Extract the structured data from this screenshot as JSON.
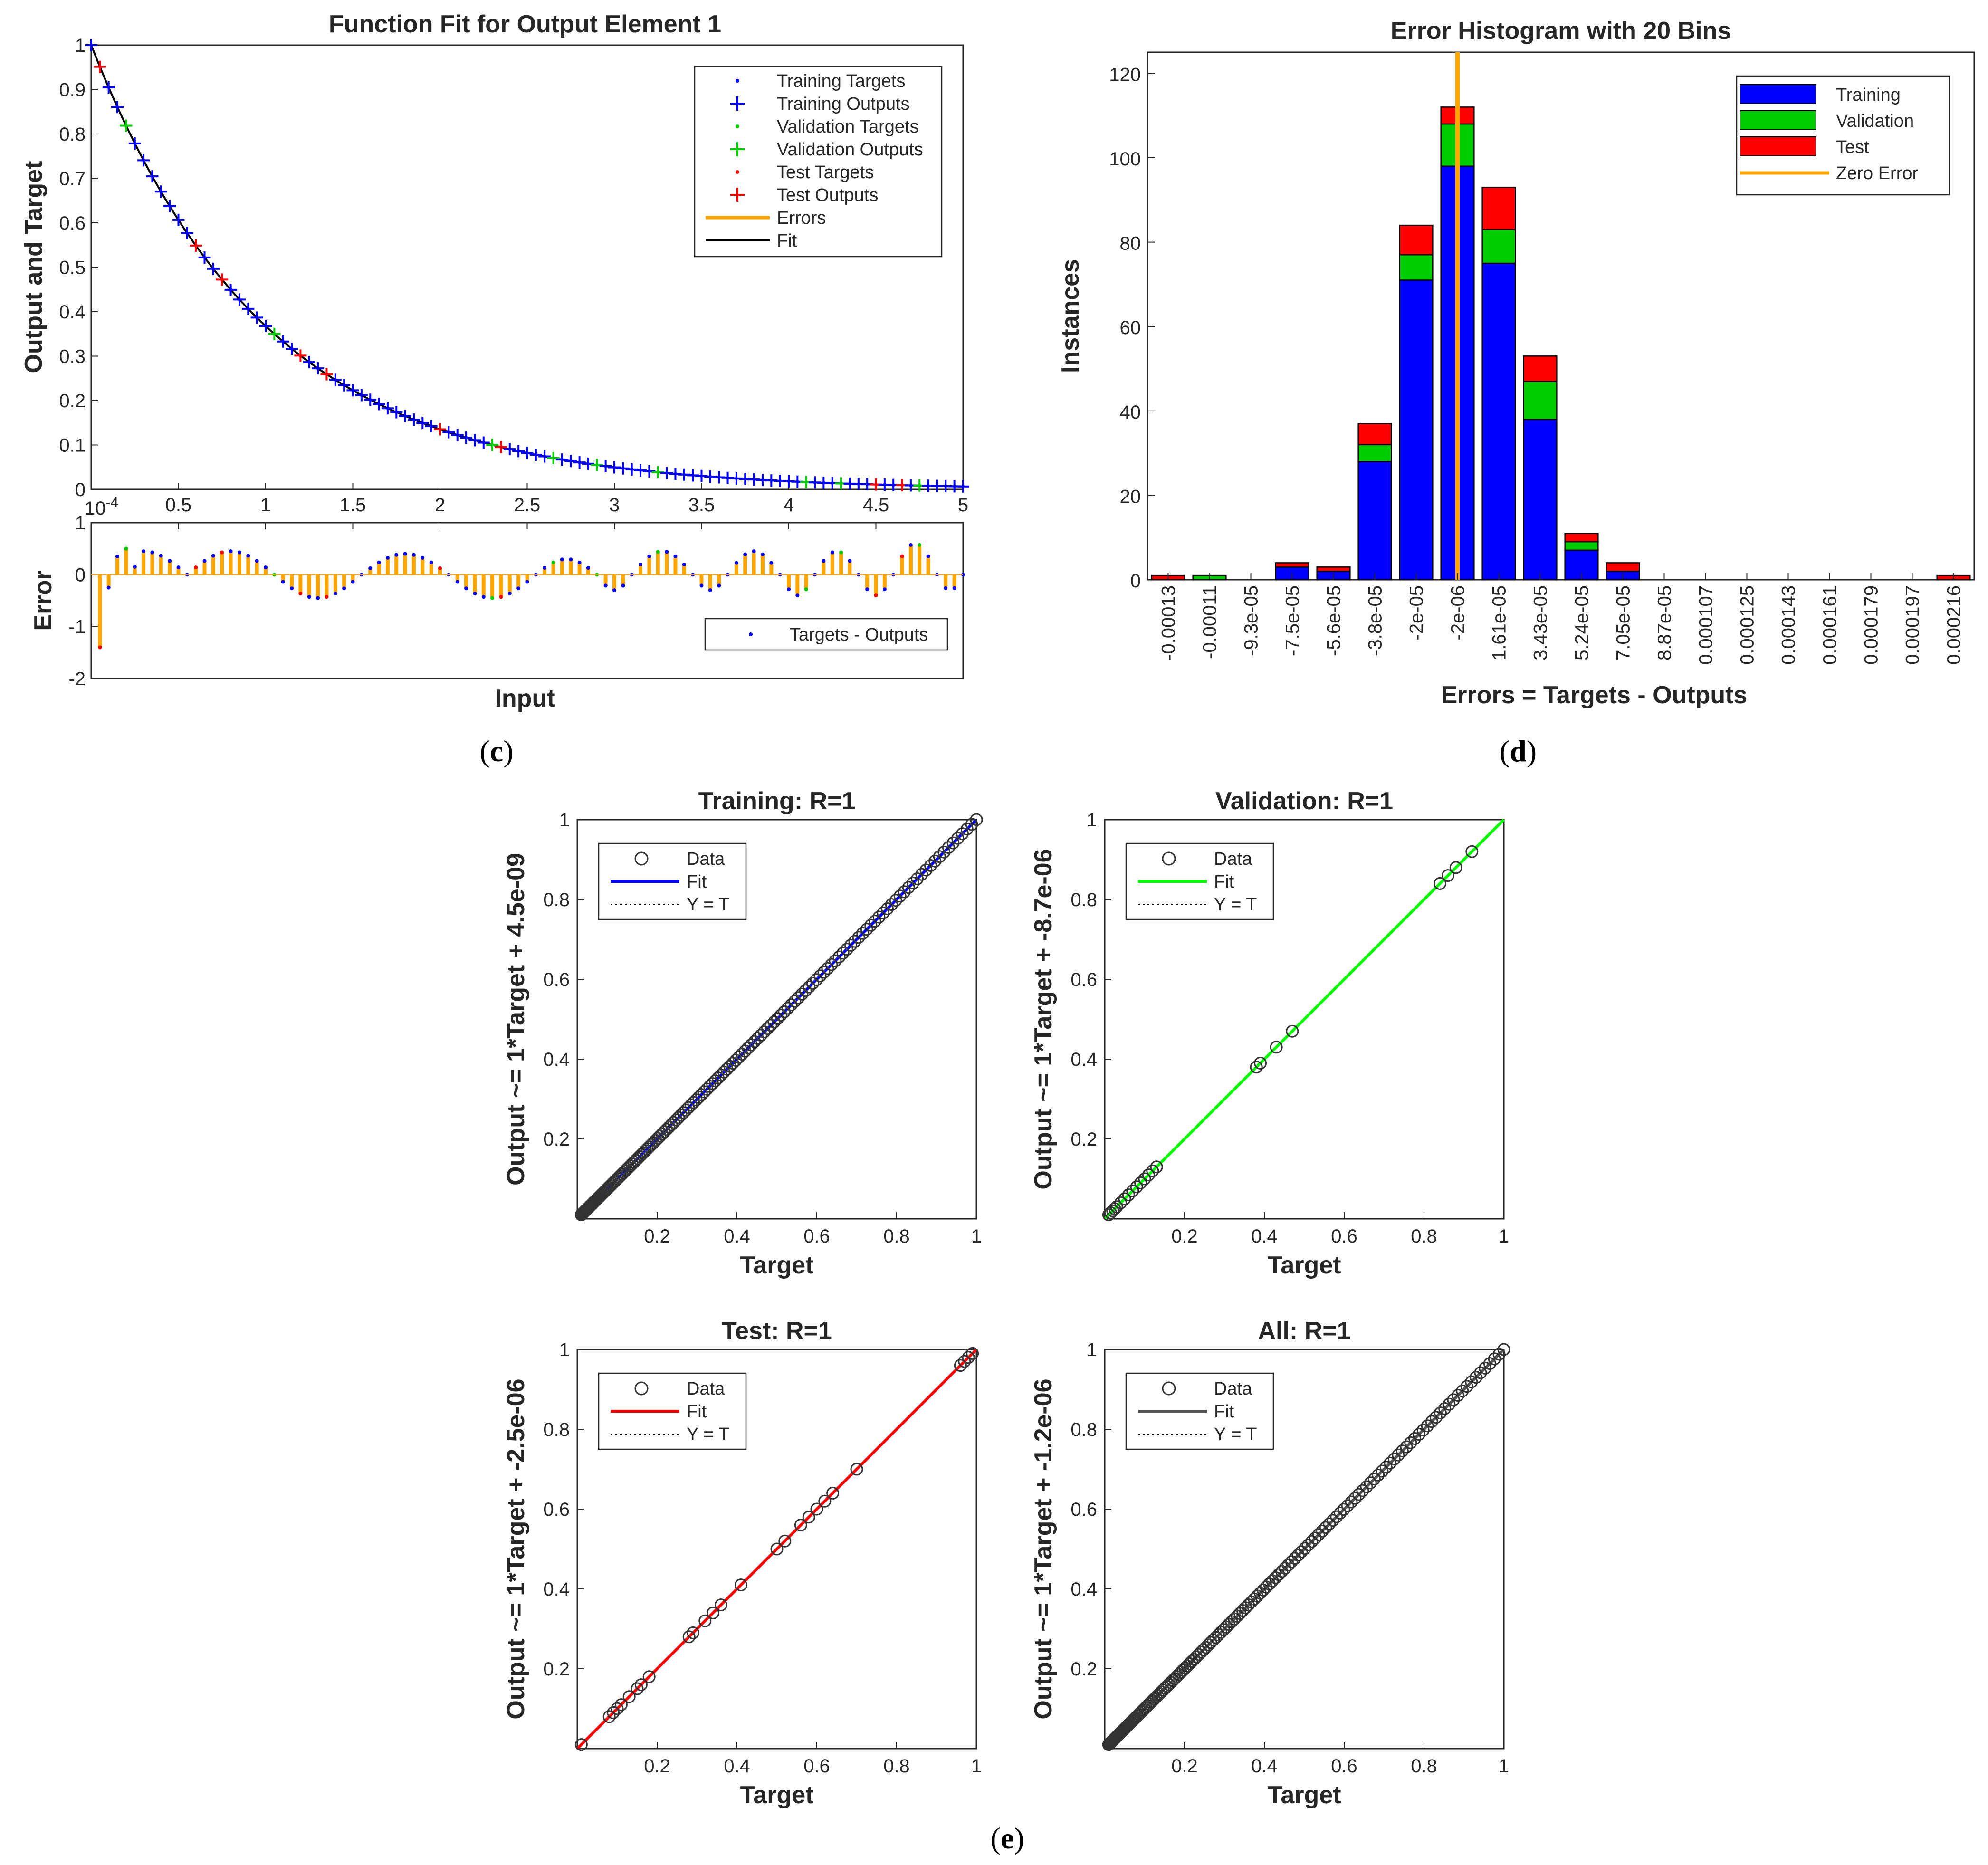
{
  "captions": {
    "c": "c",
    "d": "d",
    "e": "e"
  },
  "colors": {
    "training": "#0000ff",
    "validation": "#00cc00",
    "test": "#ff0000",
    "errors": "#ffa500",
    "fit": "#000000",
    "all_fit": "#555555"
  },
  "chart_data": [
    {
      "id": "fit",
      "type": "line",
      "title": "Function Fit for Output Element 1",
      "xlabel": "Input",
      "ylabel": "Output and Target",
      "xlim": [
        0,
        5
      ],
      "ylim": [
        0,
        1
      ],
      "xticks": [
        "0",
        "0.5",
        "1",
        "1.5",
        "2",
        "2.5",
        "3",
        "3.5",
        "4",
        "4.5",
        "5"
      ],
      "yticks": [
        "0",
        "0.1",
        "0.2",
        "0.3",
        "0.4",
        "0.5",
        "0.6",
        "0.7",
        "0.8",
        "0.9",
        "1"
      ],
      "function": "exp(-x)",
      "x_step": 0.05,
      "validation_x": [
        0.2,
        1.05,
        2.3,
        2.65,
        2.9,
        3.25,
        4.1,
        4.3,
        4.75
      ],
      "test_x": [
        0.05,
        0.6,
        0.75,
        1.2,
        1.35,
        2.0,
        2.35,
        4.5,
        4.65
      ],
      "legend": [
        "Training Targets",
        "Training Outputs",
        "Validation Targets",
        "Validation Outputs",
        "Test Targets",
        "Test Outputs",
        "Errors",
        "Fit"
      ],
      "error_panel": {
        "ylabel": "Error",
        "multiplier": "× 10^-4",
        "multiplier_base": "10",
        "multiplier_exp": "-4",
        "ylim": [
          -2,
          1
        ],
        "yticks": [
          "-2",
          "-1",
          "0",
          "1"
        ],
        "legend": "Targets - Outputs",
        "waves": [
          {
            "from": 0.05,
            "to": 0.55,
            "amp": 0.45
          },
          {
            "from": 0.55,
            "to": 1.05,
            "amp": 0.45
          },
          {
            "from": 1.05,
            "to": 1.55,
            "amp": -0.45
          },
          {
            "from": 1.55,
            "to": 2.05,
            "amp": 0.4
          },
          {
            "from": 2.05,
            "to": 2.55,
            "amp": -0.45
          },
          {
            "from": 2.55,
            "to": 2.9,
            "amp": 0.3
          },
          {
            "from": 2.9,
            "to": 3.1,
            "amp": -0.3
          },
          {
            "from": 3.1,
            "to": 3.45,
            "amp": 0.45
          },
          {
            "from": 3.45,
            "to": 3.65,
            "amp": -0.3
          },
          {
            "from": 3.65,
            "to": 3.95,
            "amp": 0.45
          },
          {
            "from": 3.95,
            "to": 4.15,
            "amp": -0.4
          },
          {
            "from": 4.15,
            "to": 4.4,
            "amp": 0.45
          },
          {
            "from": 4.4,
            "to": 4.6,
            "amp": -0.4
          },
          {
            "from": 4.6,
            "to": 4.85,
            "amp": 0.6
          },
          {
            "from": 4.85,
            "to": 5.0,
            "amp": -0.3
          }
        ],
        "spikes": [
          {
            "x": 0.05,
            "y": -1.4
          },
          {
            "x": 0.1,
            "y": -0.25
          },
          {
            "x": 0.15,
            "y": 0.35
          },
          {
            "x": 0.2,
            "y": 0.5
          },
          {
            "x": 0.25,
            "y": 0.15
          }
        ]
      }
    },
    {
      "id": "hist",
      "type": "bar",
      "title": "Error Histogram with 20 Bins",
      "xlabel": "Errors = Targets - Outputs",
      "ylabel": "Instances",
      "ylim": [
        0,
        125
      ],
      "yticks": [
        0,
        20,
        40,
        60,
        80,
        100,
        120
      ],
      "categories": [
        "-0.00013",
        "-0.00011",
        "-9.3e-05",
        "-7.5e-05",
        "-5.6e-05",
        "-3.8e-05",
        "-2e-05",
        "-2e-06",
        "1.61e-05",
        "3.43e-05",
        "5.24e-05",
        "7.05e-05",
        "8.87e-05",
        "0.000107",
        "0.000125",
        "0.000143",
        "0.000161",
        "0.000179",
        "0.000197",
        "0.000216"
      ],
      "series": [
        {
          "name": "Training",
          "values": [
            0,
            0,
            0,
            3,
            2,
            28,
            71,
            98,
            75,
            38,
            7,
            2,
            0,
            0,
            0,
            0,
            0,
            0,
            0,
            0
          ]
        },
        {
          "name": "Validation",
          "values": [
            0,
            1,
            0,
            0,
            0,
            4,
            6,
            10,
            8,
            9,
            2,
            0,
            0,
            0,
            0,
            0,
            0,
            0,
            0,
            0
          ]
        },
        {
          "name": "Test",
          "values": [
            1,
            0,
            0,
            1,
            1,
            5,
            7,
            4,
            10,
            6,
            2,
            2,
            0,
            0,
            0,
            0,
            0,
            0,
            0,
            1
          ]
        }
      ],
      "zero_error_bin": 7,
      "zero_error_label": "Zero Error"
    },
    {
      "id": "reg_training",
      "type": "scatter",
      "title": "Training: R=1",
      "xlabel": "Target",
      "ylabel": "Output ~= 1*Target + 4.5e-09",
      "xlim": [
        0,
        1
      ],
      "ylim": [
        0,
        1
      ],
      "ticks": [
        "0.2",
        "0.4",
        "0.6",
        "0.8",
        "1"
      ],
      "legend": [
        "Data",
        "Fit",
        "Y = T"
      ],
      "fit_color": "#0000ff",
      "points": "dense"
    },
    {
      "id": "reg_validation",
      "type": "scatter",
      "title": "Validation: R=1",
      "xlabel": "Target",
      "ylabel": "Output ~= 1*Target + -8.7e-06",
      "xlim": [
        0,
        1
      ],
      "ylim": [
        0,
        1
      ],
      "ticks": [
        "0.2",
        "0.4",
        "0.6",
        "0.8",
        "1"
      ],
      "legend": [
        "Data",
        "Fit",
        "Y = T"
      ],
      "fit_color": "#00ff00",
      "points": [
        0.01,
        0.015,
        0.02,
        0.025,
        0.03,
        0.04,
        0.05,
        0.06,
        0.07,
        0.08,
        0.09,
        0.1,
        0.11,
        0.12,
        0.13,
        0.38,
        0.39,
        0.43,
        0.47,
        0.84,
        0.86,
        0.88,
        0.92
      ]
    },
    {
      "id": "reg_test",
      "type": "scatter",
      "title": "Test: R=1",
      "xlabel": "Target",
      "ylabel": "Output ~= 1*Target + -2.5e-06",
      "xlim": [
        0,
        1
      ],
      "ylim": [
        0,
        1
      ],
      "ticks": [
        "0.2",
        "0.4",
        "0.6",
        "0.8",
        "1"
      ],
      "legend": [
        "Data",
        "Fit",
        "Y = T"
      ],
      "fit_color": "#ff0000",
      "points": [
        0.01,
        0.08,
        0.09,
        0.1,
        0.11,
        0.13,
        0.15,
        0.16,
        0.18,
        0.28,
        0.29,
        0.32,
        0.34,
        0.36,
        0.41,
        0.5,
        0.52,
        0.56,
        0.58,
        0.6,
        0.62,
        0.64,
        0.7,
        0.96,
        0.97,
        0.98,
        0.99
      ]
    },
    {
      "id": "reg_all",
      "type": "scatter",
      "title": "All: R=1",
      "xlabel": "Target",
      "ylabel": "Output ~= 1*Target + -1.2e-06",
      "xlim": [
        0,
        1
      ],
      "ylim": [
        0,
        1
      ],
      "ticks": [
        "0.2",
        "0.4",
        "0.6",
        "0.8",
        "1"
      ],
      "legend": [
        "Data",
        "Fit",
        "Y = T"
      ],
      "fit_color": "#555555",
      "points": "dense"
    }
  ]
}
